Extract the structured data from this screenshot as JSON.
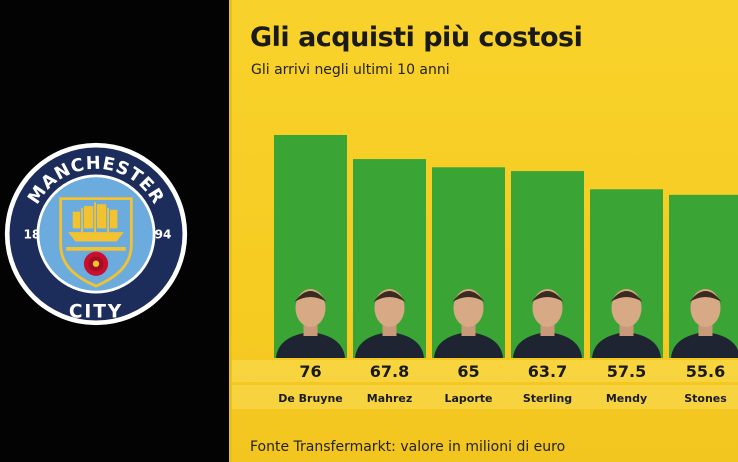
{
  "logo": {
    "text_top": "MANCHESTER",
    "text_bottom": "CITY",
    "year_left": "18",
    "year_right": "94",
    "colors": {
      "ring": "#6cabdd",
      "navy": "#1c2c5b",
      "gold": "#f2c230",
      "rose": "#c8102e"
    }
  },
  "title": "Gli acquisti più costosi",
  "subtitle": "Gli arrivi negli ultimi 10 anni",
  "footer": "Fonte Transfermarkt: valore in milioni di euro",
  "colors": {
    "bar": "#3aa535",
    "background": "#f6cc22",
    "band": "#f9df5a"
  },
  "chart_data": {
    "type": "bar",
    "title": "Gli acquisti più costosi",
    "subtitle": "Gli arrivi negli ultimi 10 anni",
    "categories": [
      "De Bruyne",
      "Mahrez",
      "Laporte",
      "Sterling",
      "Mendy",
      "Stones"
    ],
    "values": [
      76,
      67.8,
      65,
      63.7,
      57.5,
      55.6
    ],
    "value_labels": [
      "76",
      "67.8",
      "65",
      "63.7",
      "57.5",
      "55.6"
    ],
    "unit": "milioni di euro",
    "ylim": [
      0,
      80
    ],
    "grid": false,
    "legend": "none"
  }
}
